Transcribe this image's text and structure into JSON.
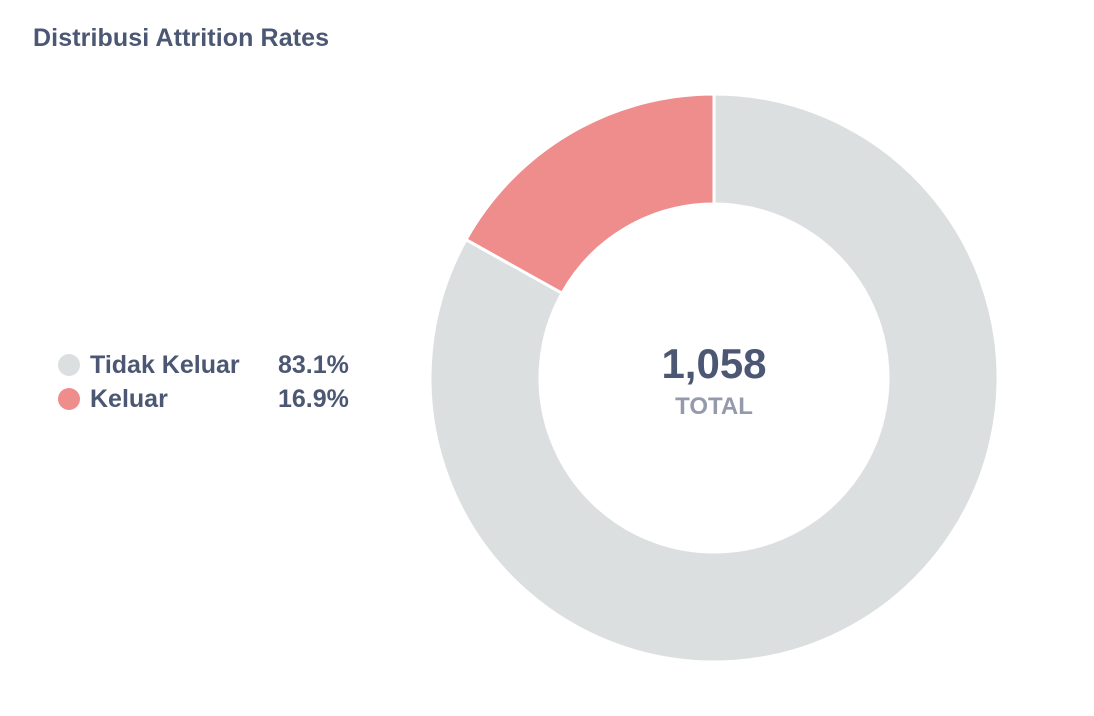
{
  "card": {
    "title": "Distribusi Attrition Rates"
  },
  "legend": {
    "items": [
      {
        "label": "Tidak Keluar",
        "value": "83.1%",
        "color": "#dcdfe0"
      },
      {
        "label": "Keluar",
        "value": "16.9%",
        "color": "#ef8c8c"
      }
    ]
  },
  "center": {
    "total": "1,058",
    "label": "TOTAL"
  },
  "chart_data": {
    "type": "pie",
    "donut": true,
    "categories": [
      "Tidak Keluar",
      "Keluar"
    ],
    "values": [
      83.1,
      16.9
    ],
    "colors": [
      "#dcdfe0",
      "#ef8c8c"
    ],
    "total": 1058,
    "title": "Distribusi Attrition Rates",
    "legend_position": "left"
  }
}
